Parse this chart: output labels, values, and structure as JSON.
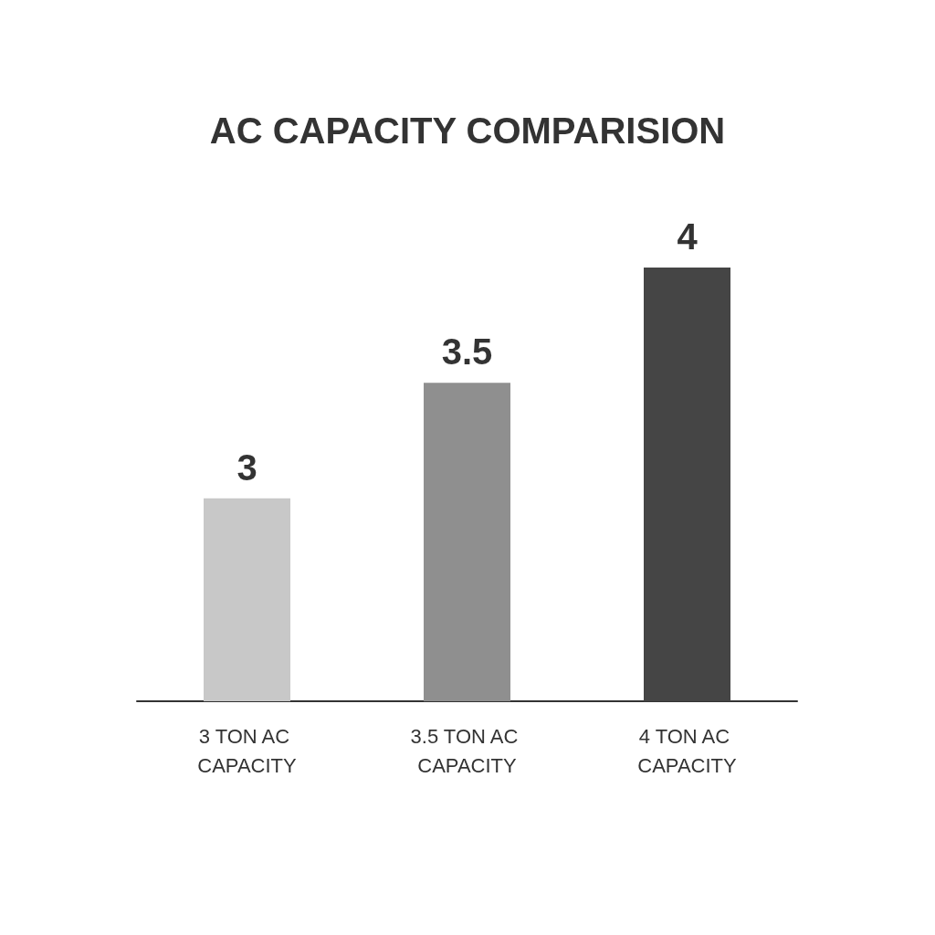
{
  "chart_data": {
    "type": "bar",
    "title": "AC CAPACITY COMPARISION",
    "categories": [
      "3 TON AC CAPACITY",
      "3.5 TON AC CAPACITY",
      "4 TON AC CAPACITY"
    ],
    "values": [
      3,
      3.5,
      4
    ],
    "colors": [
      "#c8c8c8",
      "#8f8f8f",
      "#454545"
    ],
    "ylim": [
      2.12,
      4
    ],
    "data_labels": true,
    "grid": false,
    "tick_labels": "x"
  }
}
